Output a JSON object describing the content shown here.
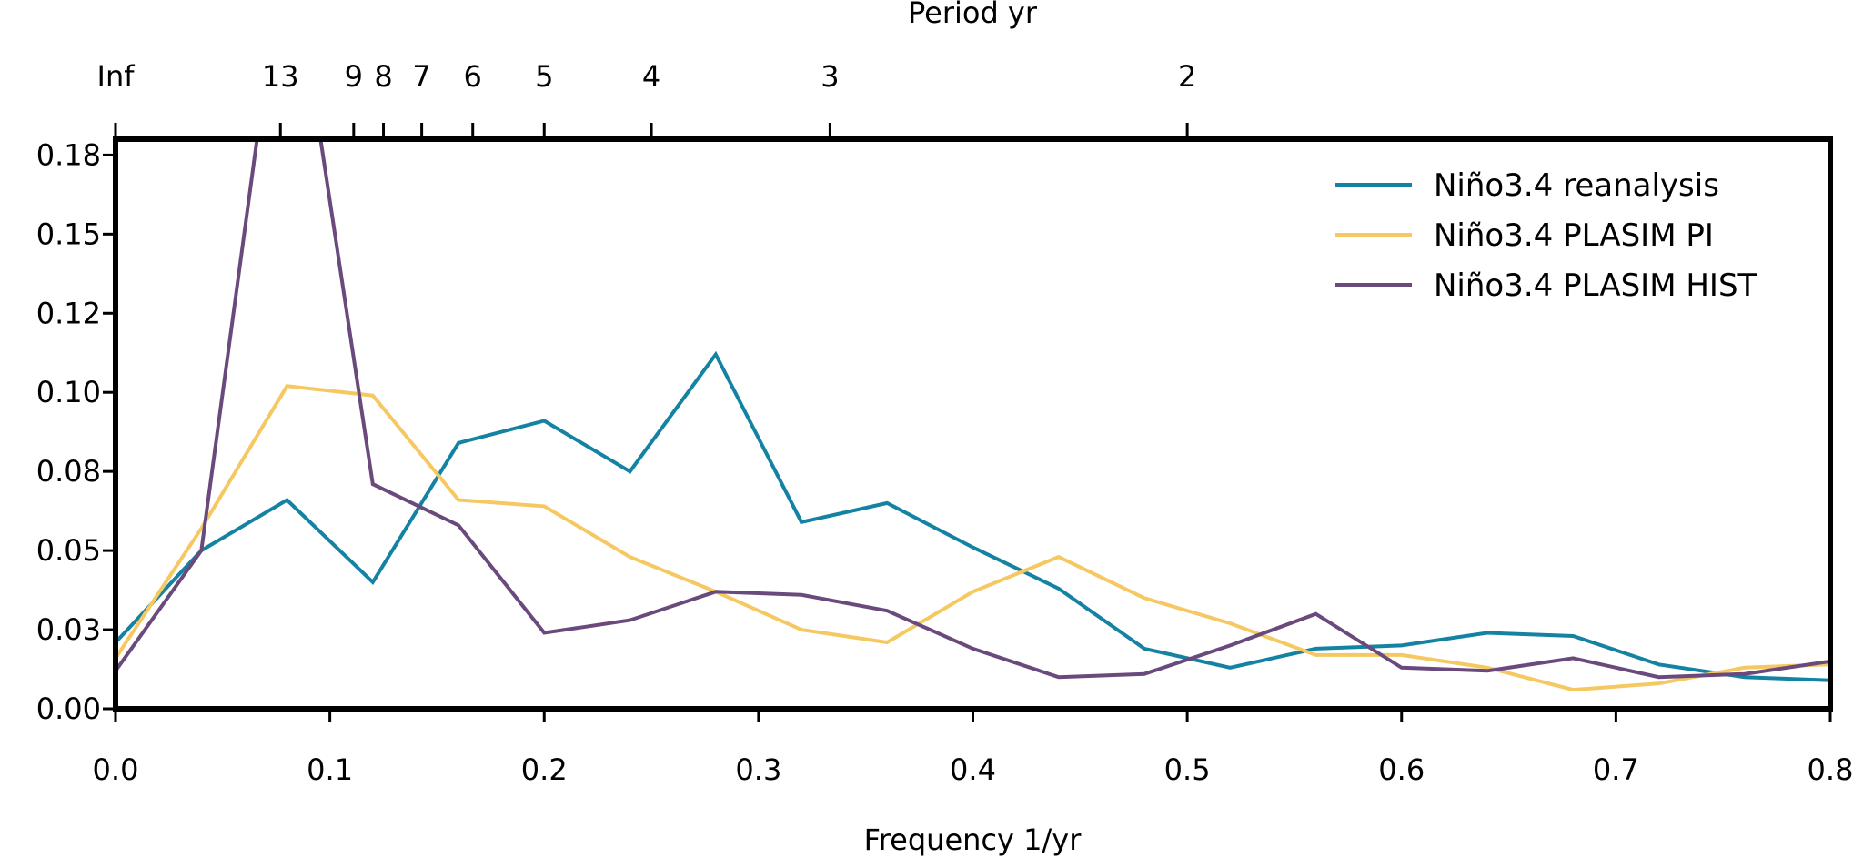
{
  "chart_data": {
    "type": "line",
    "xlabel": "Frequency 1/yr",
    "ylabel": "",
    "xlim": [
      0,
      0.8
    ],
    "ylim": [
      0,
      0.18
    ],
    "x_ticks": [
      {
        "value": 0.0,
        "label": "0.0"
      },
      {
        "value": 0.1,
        "label": "0.1"
      },
      {
        "value": 0.2,
        "label": "0.2"
      },
      {
        "value": 0.3,
        "label": "0.3"
      },
      {
        "value": 0.4,
        "label": "0.4"
      },
      {
        "value": 0.5,
        "label": "0.5"
      },
      {
        "value": 0.6,
        "label": "0.6"
      },
      {
        "value": 0.7,
        "label": "0.7"
      },
      {
        "value": 0.8,
        "label": "0.8"
      }
    ],
    "y_ticks": [
      {
        "value": 0.0,
        "label": "0.00"
      },
      {
        "value": 0.025,
        "label": "0.03"
      },
      {
        "value": 0.05,
        "label": "0.05"
      },
      {
        "value": 0.075,
        "label": "0.08"
      },
      {
        "value": 0.1,
        "label": "0.10"
      },
      {
        "value": 0.125,
        "label": "0.12"
      },
      {
        "value": 0.15,
        "label": "0.15"
      },
      {
        "value": 0.175,
        "label": "0.18"
      }
    ],
    "top_axis": {
      "label": "Period yr",
      "ticks": [
        {
          "label": "Inf",
          "period": null
        },
        {
          "label": "13",
          "period": 13
        },
        {
          "label": "9",
          "period": 9
        },
        {
          "label": "8",
          "period": 8
        },
        {
          "label": "7",
          "period": 7
        },
        {
          "label": "6",
          "period": 6
        },
        {
          "label": "5",
          "period": 5
        },
        {
          "label": "4",
          "period": 4
        },
        {
          "label": "3",
          "period": 3
        },
        {
          "label": "2",
          "period": 2
        }
      ]
    },
    "legend_position": "top-right",
    "x": [
      0,
      0.04,
      0.08,
      0.12,
      0.16,
      0.2,
      0.24,
      0.28,
      0.32,
      0.36,
      0.4,
      0.44,
      0.48,
      0.52,
      0.56,
      0.6,
      0.64,
      0.68,
      0.72,
      0.76,
      0.8
    ],
    "series": [
      {
        "name": "Niño3.4 reanalysis",
        "color": "#1482a3",
        "values": [
          0.021,
          0.05,
          0.066,
          0.04,
          0.084,
          0.091,
          0.075,
          0.112,
          0.059,
          0.065,
          0.051,
          0.038,
          0.019,
          0.013,
          0.019,
          0.02,
          0.024,
          0.023,
          0.014,
          0.01,
          0.009
        ]
      },
      {
        "name": "Niño3.4 PLASIM PI",
        "color": "#f5c862",
        "values": [
          0.016,
          0.057,
          0.102,
          0.099,
          0.066,
          0.064,
          0.048,
          0.037,
          0.025,
          0.021,
          0.037,
          0.048,
          0.035,
          0.027,
          0.017,
          0.017,
          0.013,
          0.006,
          0.008,
          0.013,
          0.014
        ]
      },
      {
        "name": "Niño3.4 PLASIM HIST",
        "color": "#6a4a7c",
        "values": [
          0.012,
          0.05,
          0.25,
          0.071,
          0.058,
          0.024,
          0.028,
          0.037,
          0.036,
          0.031,
          0.019,
          0.01,
          0.011,
          0.02,
          0.03,
          0.013,
          0.012,
          0.016,
          0.01,
          0.011,
          0.015
        ]
      }
    ]
  }
}
